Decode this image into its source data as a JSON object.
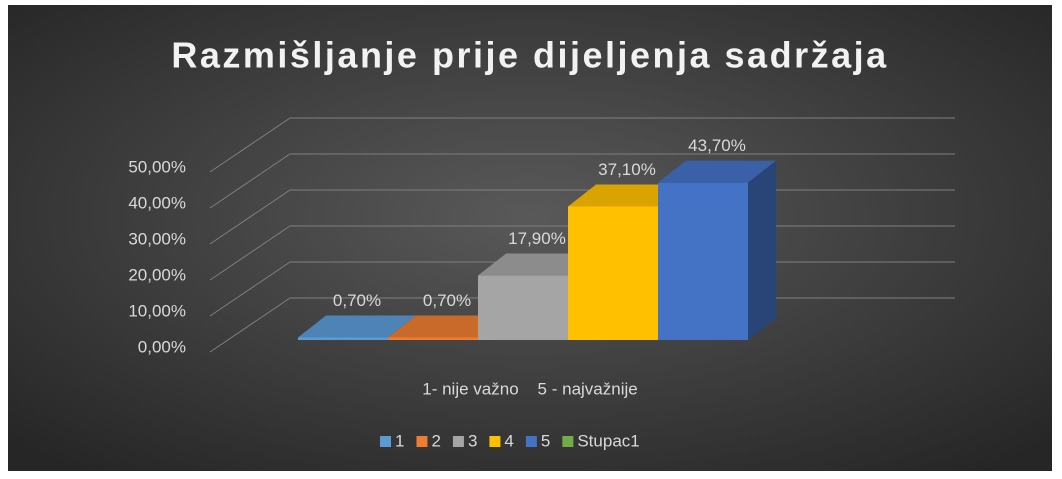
{
  "chart_data": {
    "type": "bar3d",
    "title": "Razmišljanje prije dijeljenja sadržaja",
    "categories": [
      "1- nije važno    5 - najvažnije"
    ],
    "series": [
      {
        "name": "1",
        "color": "#5b9bd5",
        "values": [
          0.7
        ],
        "value_labels": [
          "0,70%"
        ]
      },
      {
        "name": "2",
        "color": "#ed7d31",
        "values": [
          0.7
        ],
        "value_labels": [
          "0,70%"
        ]
      },
      {
        "name": "3",
        "color": "#a5a5a5",
        "values": [
          17.9
        ],
        "value_labels": [
          "17,90%"
        ]
      },
      {
        "name": "4",
        "color": "#ffc000",
        "values": [
          37.1
        ],
        "value_labels": [
          "37,10%"
        ]
      },
      {
        "name": "5",
        "color": "#4472c4",
        "values": [
          43.7
        ],
        "value_labels": [
          "43,70%"
        ]
      },
      {
        "name": "Stupac1",
        "color": "#70ad47",
        "values": [
          null
        ]
      }
    ],
    "ylim": [
      0,
      50
    ],
    "yticks": [
      {
        "value": 0,
        "label": "0,00%"
      },
      {
        "value": 10,
        "label": "10,00%"
      },
      {
        "value": 20,
        "label": "20,00%"
      },
      {
        "value": 30,
        "label": "30,00%"
      },
      {
        "value": 40,
        "label": "40,00%"
      },
      {
        "value": 50,
        "label": "50,00%"
      }
    ],
    "grid": true,
    "legend": "bottom"
  }
}
